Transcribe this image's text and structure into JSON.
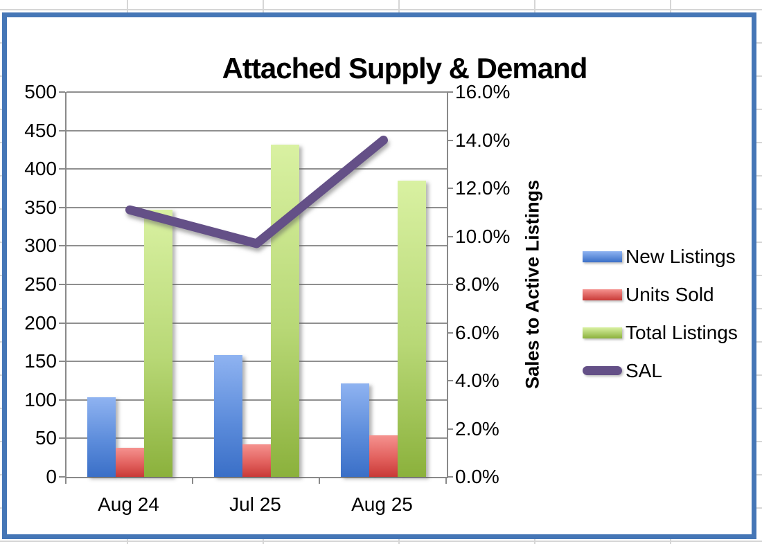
{
  "chart_data": {
    "type": "combo",
    "title": "Attached Supply & Demand",
    "categories": [
      "Aug 24",
      "Jul 25",
      "Aug 25"
    ],
    "series": [
      {
        "name": "New Listings",
        "chart": "bar",
        "axis": "primary",
        "values": [
          103,
          158,
          121
        ],
        "color_top": "#8fb3f1",
        "color_bottom": "#3a6fc7"
      },
      {
        "name": "Units Sold",
        "chart": "bar",
        "axis": "primary",
        "values": [
          38,
          42,
          54
        ],
        "color_top": "#f5928f",
        "color_bottom": "#c93a37"
      },
      {
        "name": "Total Listings",
        "chart": "bar",
        "axis": "primary",
        "values": [
          347,
          432,
          385
        ],
        "color_top": "#d9f1a2",
        "color_bottom": "#8bb13c"
      },
      {
        "name": "SAL",
        "chart": "line",
        "axis": "secondary",
        "values": [
          11.1,
          9.7,
          14.0
        ],
        "color": "#645087"
      }
    ],
    "primary_axis": {
      "min": 0,
      "max": 500,
      "step": 50,
      "tick_labels": [
        "500",
        "450",
        "400",
        "350",
        "300",
        "250",
        "200",
        "150",
        "100",
        "50",
        "0"
      ]
    },
    "secondary_axis": {
      "min": 0,
      "max": 16,
      "step": 2,
      "tick_labels": [
        "16.0%",
        "14.0%",
        "12.0%",
        "10.0%",
        "8.0%",
        "6.0%",
        "4.0%",
        "2.0%",
        "0.0%"
      ],
      "title": "Sales to Active Listings"
    },
    "legend": {
      "position": "right",
      "entries": [
        "New Listings",
        "Units Sold",
        "Total Listings",
        "SAL"
      ]
    },
    "gridlines": true,
    "colors": {
      "chart_border": "#4576b6",
      "axis_gray": "#898989",
      "sheet_gridline": "#d6d6d6",
      "title_color": "#000000"
    }
  }
}
